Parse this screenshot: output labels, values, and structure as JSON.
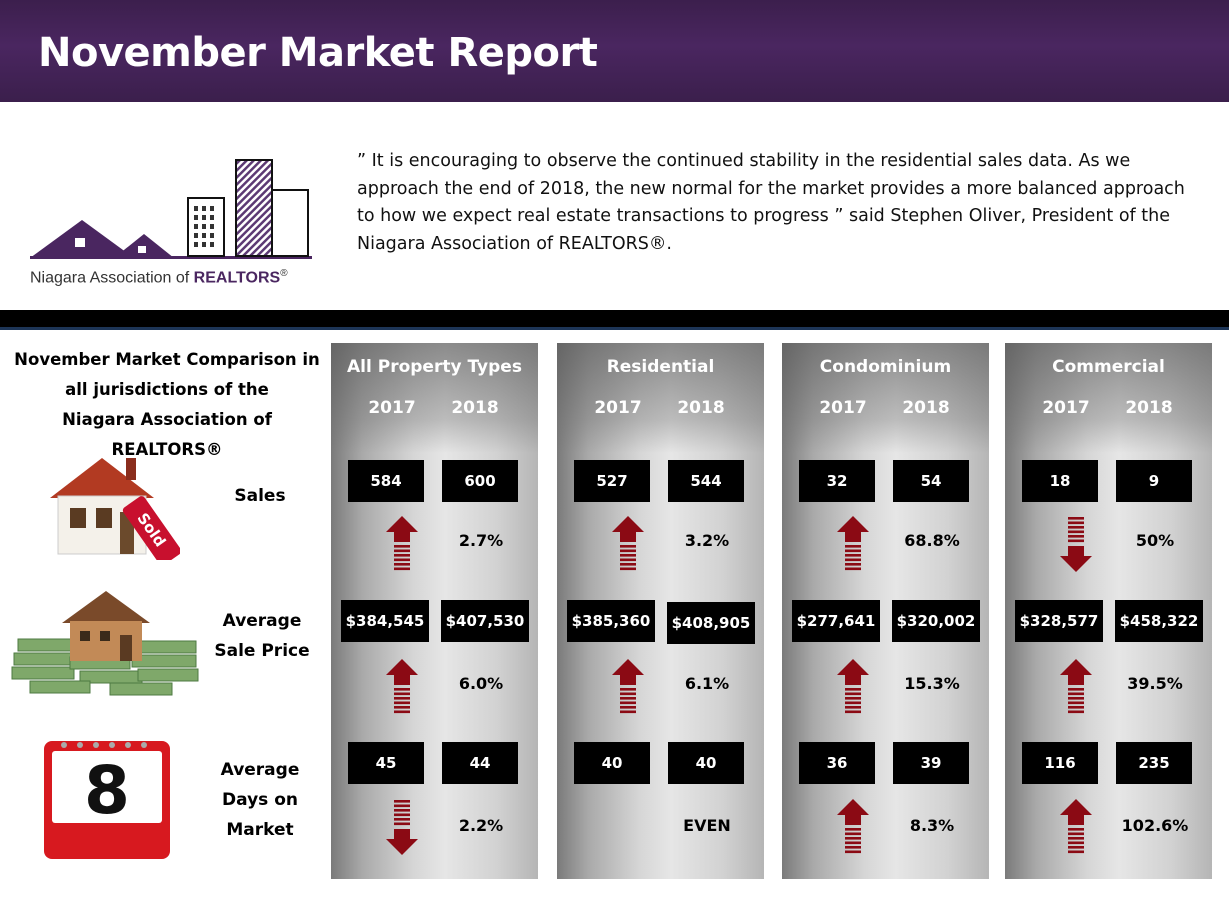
{
  "header": {
    "title": "November Market Report"
  },
  "logo": {
    "org_prefix": "Niagara Association of ",
    "org_brand": "REALTORS",
    "reg_mark": "®"
  },
  "quote": {
    "text": "” It is encouraging to observe the continued stability in the residential sales data.  As we approach the end of 2018, the new normal for the market provides a more balanced approach to how we expect real estate transactions to progress ” said Stephen Oliver, President of the Niagara Association of REALTORS®."
  },
  "comparison": {
    "title_line1": "November Market Comparison in",
    "title_line2": "all jurisdictions of the",
    "title_line3": "Niagara Association of REALTORS®"
  },
  "rows": {
    "sales": {
      "label": "Sales"
    },
    "price": {
      "label_line1": "Average",
      "label_line2": "Sale Price"
    },
    "days": {
      "label_line1": "Average",
      "label_line2": "Days on",
      "label_line3": "Market",
      "calendar_number": "8"
    }
  },
  "panels": [
    {
      "title": "All Property Types",
      "y1": "2017",
      "y2": "2018",
      "sales_2017": "584",
      "sales_2018": "600",
      "sales_change": "2.7%",
      "sales_dir": "up",
      "price_2017": "$384,545",
      "price_2018": "$407,530",
      "price_change": "6.0%",
      "price_dir": "up",
      "days_2017": "45",
      "days_2018": "44",
      "days_change": "2.2%",
      "days_dir": "down"
    },
    {
      "title": "Residential",
      "y1": "2017",
      "y2": "2018",
      "sales_2017": "527",
      "sales_2018": "544",
      "sales_change": "3.2%",
      "sales_dir": "up",
      "price_2017": "$385,360",
      "price_2018": "$408,905",
      "price_change": "6.1%",
      "price_dir": "up",
      "days_2017": "40",
      "days_2018": "40",
      "days_change": "EVEN",
      "days_dir": "none"
    },
    {
      "title": "Condominium",
      "y1": "2017",
      "y2": "2018",
      "sales_2017": "32",
      "sales_2018": "54",
      "sales_change": "68.8%",
      "sales_dir": "up",
      "price_2017": "$277,641",
      "price_2018": "$320,002",
      "price_change": "15.3%",
      "price_dir": "up",
      "days_2017": "36",
      "days_2018": "39",
      "days_change": "8.3%",
      "days_dir": "up"
    },
    {
      "title": "Commercial",
      "y1": "2017",
      "y2": "2018",
      "sales_2017": "18",
      "sales_2018": "9",
      "sales_change": "50%",
      "sales_dir": "down",
      "price_2017": "$328,577",
      "price_2018": "$458,322",
      "price_change": "39.5%",
      "price_dir": "up",
      "days_2017": "116",
      "days_2018": "235",
      "days_change": "102.6%",
      "days_dir": "up"
    }
  ],
  "colors": {
    "header_bg": "#4a2660",
    "arrow_red": "#8b0a14",
    "box_bg": "#000000",
    "panel_grey": "#d6d6d6"
  },
  "icons": {
    "sales": "sold-house-icon",
    "price": "house-on-money-icon",
    "days": "calendar-icon",
    "arrow_up": "arrow-up-icon",
    "arrow_down": "arrow-down-icon"
  }
}
